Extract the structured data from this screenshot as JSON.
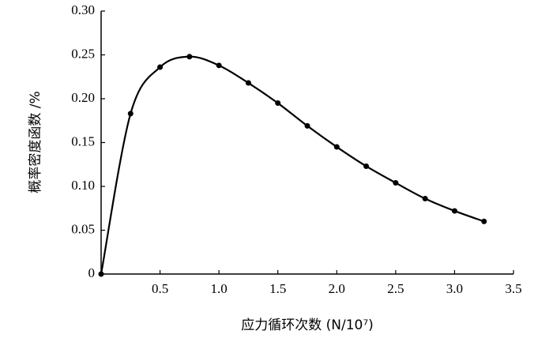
{
  "chart_data": {
    "type": "line",
    "x_label": "应力循环次数 (N/10⁷)",
    "y_label": "概率密度函数 /%",
    "x": [
      0,
      0.25,
      0.5,
      0.75,
      1,
      1.25,
      1.5,
      1.75,
      2,
      2.25,
      2.5,
      2.75,
      3,
      3.25
    ],
    "series": [
      {
        "color": "#000000",
        "values": [
          0,
          0.183,
          0.236,
          0.248,
          0.238,
          0.218,
          0.195,
          0.169,
          0.145,
          0.123,
          0.104,
          0.086,
          0.072,
          0.06
        ]
      }
    ],
    "xlim": [
      0,
      3.5
    ],
    "xticks": [
      0.5,
      {
        "value": 1,
        "label": "1.0"
      },
      1.5,
      {
        "value": 2,
        "label": "2.0"
      },
      2.5,
      {
        "value": 3,
        "label": "3.0"
      },
      3.5
    ],
    "ylim": [
      0,
      0.3
    ],
    "yticks": [
      0,
      0.05,
      {
        "value": 0.1,
        "label": "0.10"
      },
      0.15,
      {
        "value": 0.2,
        "label": "0.20"
      },
      0.25,
      {
        "value": 0.3,
        "label": "0.30"
      }
    ],
    "grid": false
  }
}
